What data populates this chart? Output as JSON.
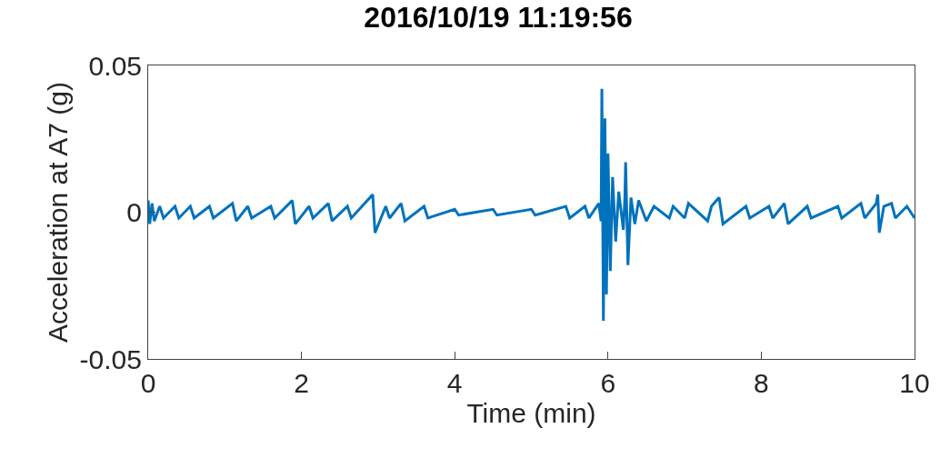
{
  "chart_data": {
    "type": "line",
    "title": "2016/10/19 11:19:56",
    "xlabel": "Time (min)",
    "ylabel": "Acceleration at A7 (g)",
    "xlim": [
      0,
      10
    ],
    "ylim": [
      -0.05,
      0.05
    ],
    "xticks": [
      0,
      2,
      4,
      6,
      8,
      10
    ],
    "yticks": [
      -0.05,
      0,
      0.05
    ],
    "marker": "none",
    "line_style": "solid",
    "series": [
      {
        "color": "#0072bd",
        "x": [
          0,
          0.02,
          0.05,
          0.08,
          0.15,
          0.2,
          0.35,
          0.4,
          0.55,
          0.6,
          0.8,
          0.85,
          1.1,
          1.15,
          1.3,
          1.35,
          1.6,
          1.65,
          1.88,
          1.92,
          2.1,
          2.15,
          2.35,
          2.4,
          2.6,
          2.65,
          2.93,
          2.96,
          3.1,
          3.15,
          3.3,
          3.35,
          3.6,
          3.65,
          4.0,
          4.05,
          4.5,
          4.55,
          5.0,
          5.05,
          5.45,
          5.5,
          5.7,
          5.75,
          5.88,
          5.91,
          5.92,
          5.94,
          5.96,
          5.98,
          6.0,
          6.03,
          6.06,
          6.1,
          6.14,
          6.2,
          6.22,
          6.23,
          6.26,
          6.3,
          6.35,
          6.4,
          6.5,
          6.6,
          6.8,
          6.85,
          7.0,
          7.05,
          7.3,
          7.35,
          7.45,
          7.5,
          7.8,
          7.85,
          8.1,
          8.15,
          8.3,
          8.35,
          8.6,
          8.65,
          9.0,
          9.05,
          9.3,
          9.35,
          9.5,
          9.52,
          9.54,
          9.6,
          9.7,
          9.75,
          9.9,
          10
        ],
        "values": [
          0.004,
          -0.004,
          0.003,
          -0.003,
          0.002,
          -0.002,
          0.002,
          -0.002,
          0.002,
          -0.002,
          0.002,
          -0.002,
          0.003,
          -0.003,
          0.002,
          -0.002,
          0.002,
          -0.002,
          0.004,
          -0.004,
          0.002,
          -0.002,
          0.003,
          -0.003,
          0.002,
          -0.002,
          0.006,
          -0.007,
          0.002,
          -0.002,
          0.003,
          -0.003,
          0.002,
          -0.002,
          0.001,
          -0.001,
          0.001,
          -0.001,
          0.001,
          -0.001,
          0.002,
          -0.002,
          0.002,
          -0.002,
          0.003,
          -0.003,
          0.042,
          -0.037,
          0.032,
          -0.028,
          0.02,
          -0.02,
          0.012,
          -0.01,
          0.007,
          -0.006,
          0.005,
          0.017,
          -0.018,
          0.005,
          -0.004,
          0.004,
          -0.003,
          0.002,
          -0.002,
          0.002,
          -0.002,
          0.003,
          -0.003,
          0.002,
          0.005,
          -0.004,
          0.002,
          -0.002,
          0.002,
          -0.002,
          0.003,
          -0.004,
          0.002,
          -0.002,
          0.002,
          -0.002,
          0.003,
          -0.002,
          0.003,
          0.006,
          -0.007,
          0.002,
          0.003,
          -0.002,
          0.002,
          -0.002
        ]
      }
    ]
  }
}
